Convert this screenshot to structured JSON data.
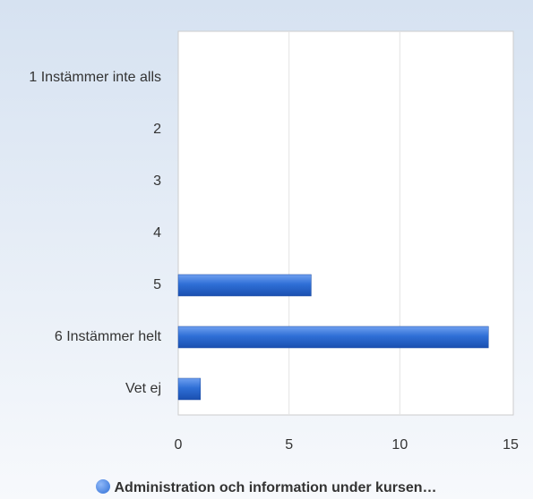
{
  "chart_data": {
    "type": "hbar",
    "categories": [
      "1 Instämmer inte alls",
      "2",
      "3",
      "4",
      "5",
      "6 Instämmer helt",
      "Vet ej"
    ],
    "series": [
      {
        "name": "Administration och information under kursen…",
        "color": "#2f6fd6",
        "values": [
          0,
          0,
          0,
          0,
          6,
          14,
          1
        ]
      }
    ],
    "xlim": [
      0,
      15
    ],
    "xticks": [
      0,
      5,
      10,
      15
    ],
    "grid": true,
    "legend": "bottom"
  }
}
